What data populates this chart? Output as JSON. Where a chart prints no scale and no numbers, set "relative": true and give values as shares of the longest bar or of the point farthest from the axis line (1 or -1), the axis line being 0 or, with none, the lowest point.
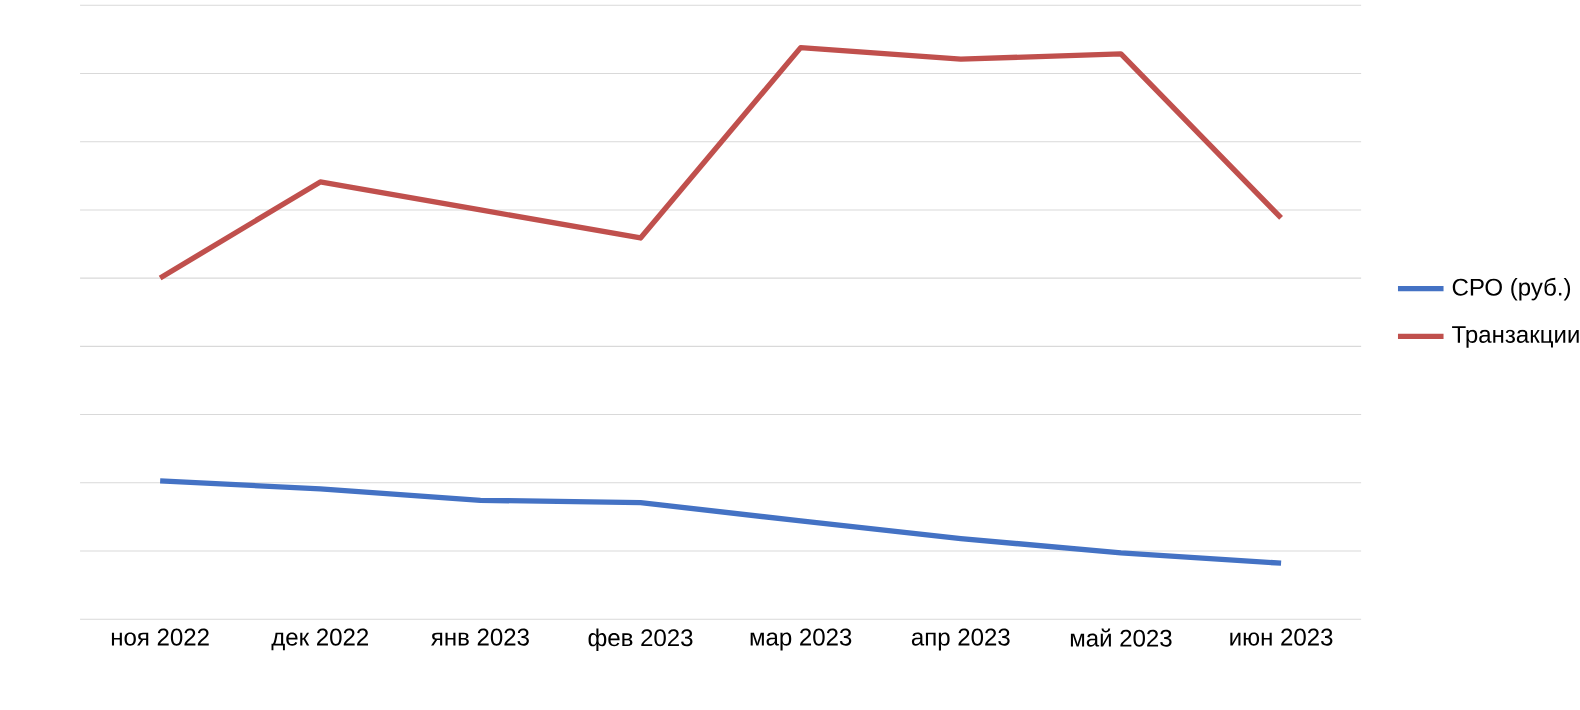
{
  "chart_data": {
    "type": "line",
    "relative": true,
    "categories": [
      "ноя 2022",
      "дек 2022",
      "янв 2023",
      "фев 2023",
      "мар 2023",
      "апр 2023",
      "май 2023",
      "июн 2023"
    ],
    "series": [
      {
        "name": "СРО (руб.)",
        "color": "#4472c4",
        "values": [
          0.242,
          0.228,
          0.208,
          0.204,
          0.172,
          0.141,
          0.116,
          0.098
        ]
      },
      {
        "name": "Транзакции",
        "color": "#c0504d",
        "values": [
          0.597,
          0.765,
          0.716,
          0.667,
          1.0,
          0.98,
          0.989,
          0.702
        ]
      }
    ],
    "grid": "y",
    "legend": "right",
    "marker": "none",
    "line_style": "solid"
  }
}
